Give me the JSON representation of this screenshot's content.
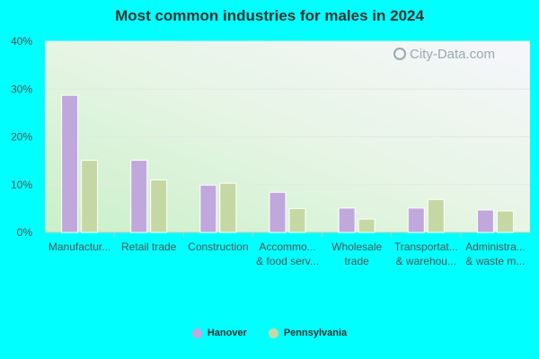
{
  "chart_data": {
    "type": "bar",
    "title": "Most common industries for males in 2024",
    "watermark": "City-Data.com",
    "categories": [
      [
        "Manufactur..."
      ],
      [
        "Retail trade"
      ],
      [
        "Construction"
      ],
      [
        "Accommo...",
        "& food serv..."
      ],
      [
        "Wholesale",
        "trade"
      ],
      [
        "Transportat...",
        "& warehou..."
      ],
      [
        "Administra...",
        "& waste m..."
      ]
    ],
    "series": [
      {
        "name": "Hanover",
        "color": "#c0a8dc",
        "values": [
          28.7,
          15.1,
          9.9,
          8.4,
          5.1,
          5.1,
          4.7
        ]
      },
      {
        "name": "Pennsylvania",
        "color": "#c5d8a4",
        "values": [
          15.1,
          11.0,
          10.3,
          5.0,
          2.8,
          6.9,
          4.5
        ]
      }
    ],
    "yticks": [
      "0%",
      "10%",
      "20%",
      "30%",
      "40%"
    ],
    "ylim": [
      0,
      40
    ],
    "grid": true,
    "legend_position": "bottom"
  }
}
